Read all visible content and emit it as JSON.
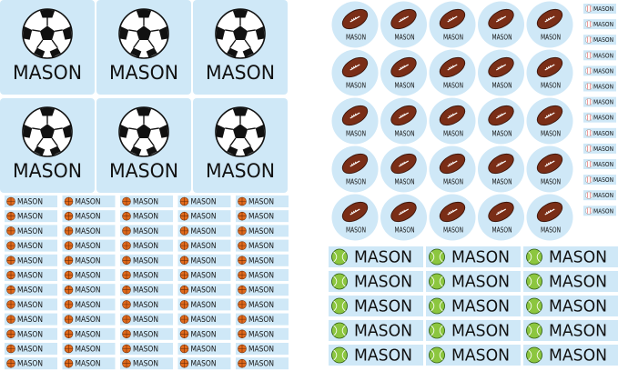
{
  "label_text": "MASON"
}
